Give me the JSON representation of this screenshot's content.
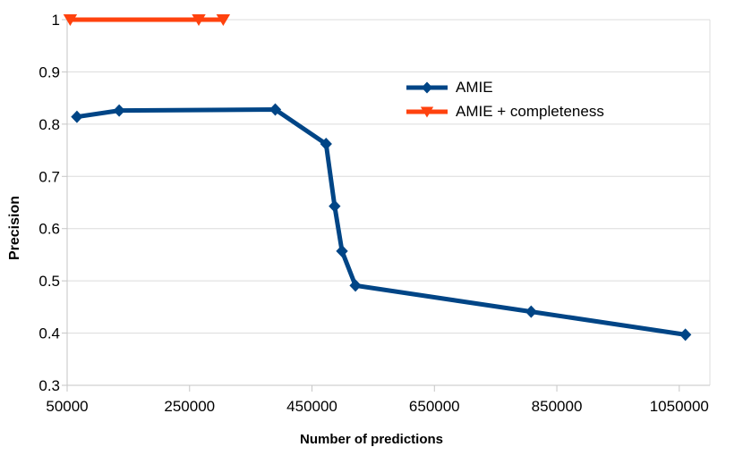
{
  "chart_data": {
    "type": "line",
    "title": "",
    "xlabel": "Number of predictions",
    "ylabel": "Precision",
    "xlim": [
      50000,
      1100000
    ],
    "ylim": [
      0.3,
      1.0
    ],
    "x_ticks": [
      50000,
      250000,
      450000,
      650000,
      850000,
      1050000
    ],
    "x_tick_labels": [
      "50000",
      "250000",
      "450000",
      "650000",
      "850000",
      "1050000"
    ],
    "y_ticks": [
      0.3,
      0.4,
      0.5,
      0.6,
      0.7,
      0.8,
      0.9,
      1
    ],
    "y_tick_labels": [
      "0.3",
      "0.4",
      "0.5",
      "0.6",
      "0.7",
      "0.8",
      "0.9",
      "1"
    ],
    "grid": "horizontal-only",
    "grid_color": "#dcdcdc",
    "axis_color": "#c6c6c6",
    "legend_position": "inside-top-right",
    "series": [
      {
        "name": "AMIE",
        "color": "#004586",
        "marker": "diamond",
        "line_width": 5,
        "points": [
          [
            66000,
            0.814
          ],
          [
            135000,
            0.826
          ],
          [
            390000,
            0.828
          ],
          [
            473000,
            0.762
          ],
          [
            487000,
            0.643
          ],
          [
            499000,
            0.557
          ],
          [
            521000,
            0.491
          ],
          [
            808000,
            0.441
          ],
          [
            1060000,
            0.397
          ]
        ]
      },
      {
        "name": "AMIE + completeness",
        "color": "#ff420e",
        "marker": "triangle-down",
        "line_width": 5,
        "points": [
          [
            55000,
            1.0
          ],
          [
            265000,
            1.0
          ],
          [
            305000,
            1.0
          ]
        ]
      }
    ]
  }
}
